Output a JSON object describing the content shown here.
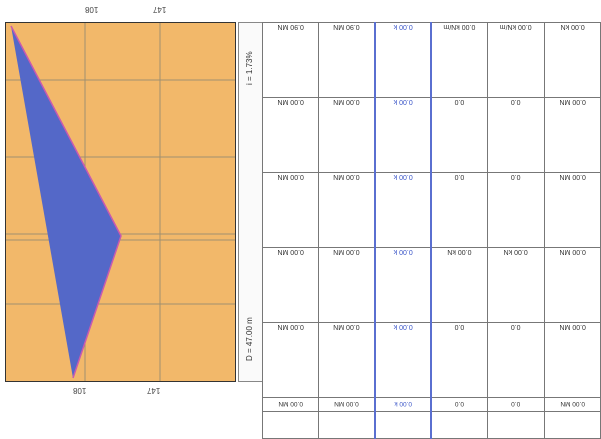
{
  "profile": {
    "colors": {
      "fill": "#f2b86a",
      "wedge": "#5468c8",
      "grid": "#a09070",
      "border": "#333333",
      "wedge_edge": "#c85ab0"
    },
    "top_ticks": [
      "108",
      "147"
    ],
    "bottom_ticks": [
      "108",
      "147"
    ],
    "side_label_top": "i = 1.73%",
    "side_label_bottom": "D = 47.00 m"
  },
  "table": {
    "rows": [
      [
        "0.90 MN",
        "0.90 MN",
        "0.00 k",
        "0.00 kN/m",
        "0.00 kN/m",
        "0.00 kN"
      ],
      [
        "0.00 MN",
        "0.00 MN",
        "0.00 k",
        "0.0",
        "0.0",
        "0.00 MN"
      ],
      [
        "0.00 MN",
        "0.00 MN",
        "0.00 k",
        "0.0",
        "0.0",
        "0.00 MN"
      ],
      [
        "0.00 MN",
        "0.00 MN",
        "0.00 k",
        "0.00 kN",
        "0.00 kN",
        "0.00 MN"
      ],
      [
        "0.00 MN",
        "0.00 MN",
        "0.00 k",
        "0.0",
        "0.0",
        "0.00 MN"
      ]
    ],
    "footer": [
      "0.00 MN",
      "0.00 MN",
      "0.00 k",
      "0.0",
      "0.0",
      "0.00 MN"
    ],
    "headers": [
      [
        "",
        ""
      ],
      [
        "",
        ""
      ],
      [
        "",
        ""
      ],
      [
        "",
        ""
      ],
      [
        "",
        ""
      ],
      [
        "",
        ""
      ]
    ]
  }
}
